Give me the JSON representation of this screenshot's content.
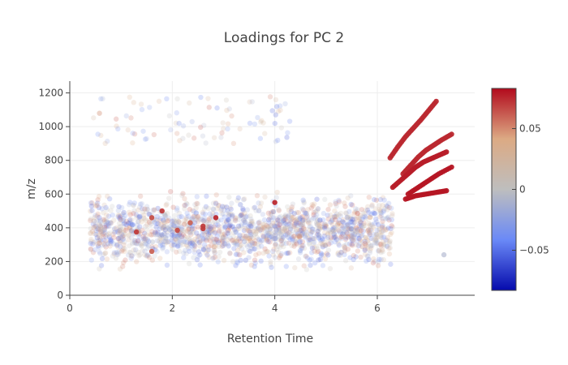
{
  "chart_data": {
    "type": "scatter",
    "title": "Loadings for PC 2",
    "xlabel": "Retention Time",
    "ylabel": "m/z",
    "xlim": [
      0,
      7.9
    ],
    "ylim": [
      0,
      1270
    ],
    "x_ticks": [
      0,
      2,
      4,
      6
    ],
    "y_ticks": [
      0,
      200,
      400,
      600,
      800,
      1000,
      1200
    ],
    "grid": true,
    "colorbar": {
      "colorscale": "RdBu-reversed",
      "range": [
        -0.083,
        0.083
      ],
      "ticks": [
        -0.05,
        0,
        0.05
      ],
      "tick_labels": [
        "−0.05",
        "0",
        "0.05"
      ],
      "position": "right"
    },
    "background_points_note_free": true,
    "random_seed": 7,
    "background_cloud": {
      "count": 1800,
      "x_range": [
        0.4,
        6.3
      ],
      "y_range": [
        60,
        900
      ],
      "sparse_high_count": 90,
      "sparse_high_y_range": [
        900,
        1180
      ],
      "loading_range": [
        -0.03,
        0.03
      ]
    },
    "highlighted_points": [
      {
        "x": 1.3,
        "y": 375,
        "loading": 0.07
      },
      {
        "x": 1.6,
        "y": 260,
        "loading": 0.06
      },
      {
        "x": 1.6,
        "y": 460,
        "loading": 0.065
      },
      {
        "x": 1.8,
        "y": 500,
        "loading": 0.07
      },
      {
        "x": 2.1,
        "y": 385,
        "loading": 0.065
      },
      {
        "x": 2.35,
        "y": 430,
        "loading": 0.06
      },
      {
        "x": 2.6,
        "y": 395,
        "loading": 0.07
      },
      {
        "x": 2.6,
        "y": 410,
        "loading": 0.07
      },
      {
        "x": 2.85,
        "y": 460,
        "loading": 0.075
      },
      {
        "x": 4.0,
        "y": 550,
        "loading": 0.075
      },
      {
        "x": 7.3,
        "y": 240,
        "loading": -0.01
      }
    ],
    "series": [
      {
        "x": [
          6.25,
          6.4,
          6.55,
          6.7,
          6.85,
          7.0,
          7.15
        ],
        "y": [
          815,
          880,
          940,
          990,
          1040,
          1095,
          1150
        ],
        "loading": 0.075
      },
      {
        "x": [
          6.5,
          6.65,
          6.8,
          6.95,
          7.1,
          7.25,
          7.45
        ],
        "y": [
          720,
          770,
          820,
          860,
          890,
          920,
          955
        ],
        "loading": 0.075
      },
      {
        "x": [
          6.3,
          6.45,
          6.6,
          6.75,
          6.9,
          7.05,
          7.2,
          7.35
        ],
        "y": [
          640,
          680,
          720,
          760,
          790,
          810,
          830,
          850
        ],
        "loading": 0.078
      },
      {
        "x": [
          6.6,
          6.8,
          7.0,
          7.2,
          7.45
        ],
        "y": [
          600,
          640,
          680,
          720,
          760
        ],
        "loading": 0.08
      },
      {
        "x": [
          6.55,
          6.75,
          6.95,
          7.15,
          7.35
        ],
        "y": [
          570,
          590,
          600,
          610,
          620
        ],
        "loading": 0.08
      }
    ]
  }
}
